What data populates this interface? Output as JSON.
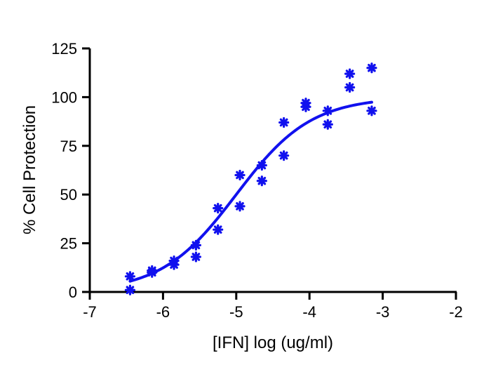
{
  "chart_data": {
    "type": "scatter",
    "title": "",
    "xlabel": "[IFN] log (ug/ml)",
    "ylabel": "% Cell Protection",
    "xlim": [
      -7,
      -2
    ],
    "ylim": [
      0,
      125
    ],
    "x_ticks": [
      -7,
      -6,
      -5,
      -4,
      -3,
      -2
    ],
    "y_ticks": [
      0,
      25,
      50,
      75,
      100,
      125
    ],
    "x_tick_labels": [
      "-7",
      "-6",
      "-5",
      "-4",
      "-3",
      "-2"
    ],
    "y_tick_labels": [
      "0",
      "25",
      "50",
      "75",
      "100",
      "125"
    ],
    "grid": false,
    "legend": "none",
    "color": "#1111ee",
    "marker": "asterisk",
    "series": [
      {
        "points": [
          {
            "x": -6.45,
            "y": 8
          },
          {
            "x": -6.45,
            "y": 1
          },
          {
            "x": -6.15,
            "y": 11
          },
          {
            "x": -6.15,
            "y": 10
          },
          {
            "x": -5.85,
            "y": 16
          },
          {
            "x": -5.85,
            "y": 14
          },
          {
            "x": -5.55,
            "y": 24
          },
          {
            "x": -5.55,
            "y": 18
          },
          {
            "x": -5.25,
            "y": 43
          },
          {
            "x": -5.25,
            "y": 32
          },
          {
            "x": -4.95,
            "y": 60
          },
          {
            "x": -4.95,
            "y": 44
          },
          {
            "x": -4.65,
            "y": 65
          },
          {
            "x": -4.65,
            "y": 57
          },
          {
            "x": -4.35,
            "y": 87
          },
          {
            "x": -4.35,
            "y": 70
          },
          {
            "x": -4.05,
            "y": 97
          },
          {
            "x": -4.05,
            "y": 95
          },
          {
            "x": -3.75,
            "y": 93
          },
          {
            "x": -3.75,
            "y": 86
          },
          {
            "x": -3.45,
            "y": 112
          },
          {
            "x": -3.45,
            "y": 105
          },
          {
            "x": -3.15,
            "y": 115
          },
          {
            "x": -3.15,
            "y": 93
          }
        ]
      }
    ],
    "fit_curve": {
      "type": "sigmoid",
      "bottom": 0,
      "top": 100,
      "log_ec50": -5.0,
      "hill_slope": 0.85,
      "x_range": [
        -6.45,
        -3.15
      ]
    }
  }
}
